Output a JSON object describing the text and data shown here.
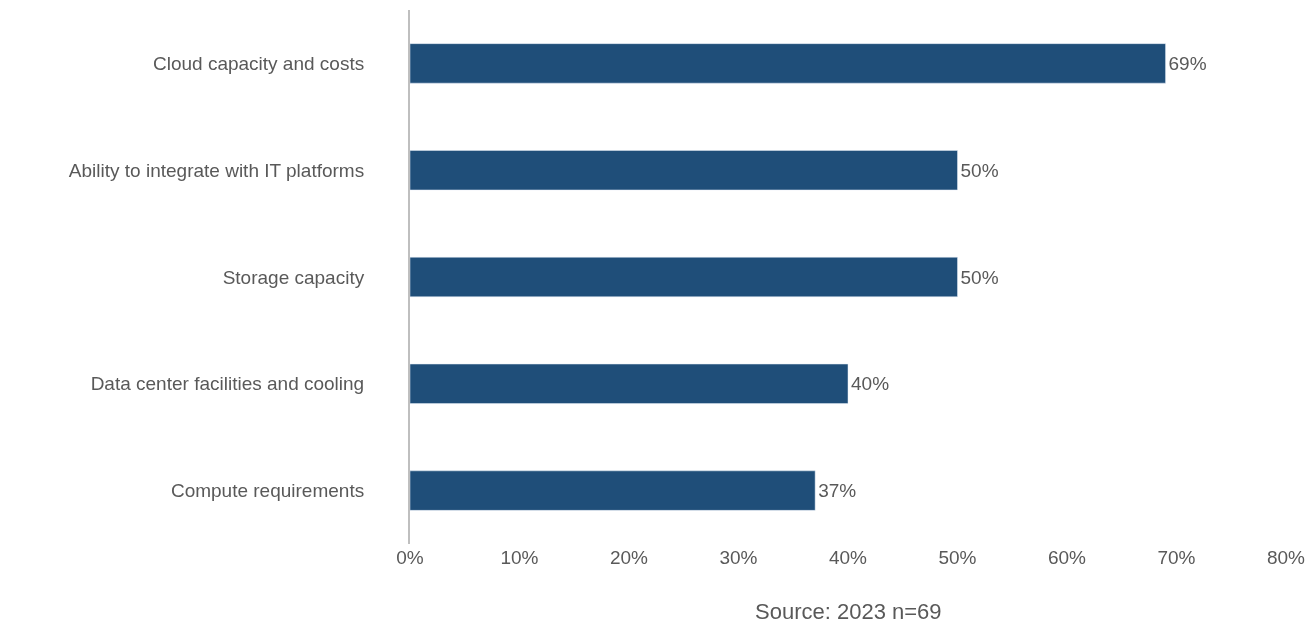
{
  "chart_data": {
    "type": "bar",
    "orientation": "horizontal",
    "categories": [
      "Cloud capacity and costs",
      "Ability to integrate with IT platforms",
      "Storage capacity",
      "Data center facilities and cooling",
      "Compute requirements"
    ],
    "values": [
      69,
      50,
      50,
      40,
      37
    ],
    "value_labels": [
      "69%",
      "50%",
      "50%",
      "40%",
      "37%"
    ],
    "color": "#1f4e79",
    "xlim": [
      0,
      80
    ],
    "xticks": [
      {
        "value": 0,
        "label": "0%"
      },
      {
        "value": 10,
        "label": "10%"
      },
      {
        "value": 20,
        "label": "20%"
      },
      {
        "value": 30,
        "label": "30%"
      },
      {
        "value": 40,
        "label": "40%"
      },
      {
        "value": 50,
        "label": "50%"
      },
      {
        "value": 60,
        "label": "60%"
      },
      {
        "value": 70,
        "label": "70%"
      },
      {
        "value": 80,
        "label": "80%"
      }
    ],
    "legend": false,
    "annotations": [
      "Source: 2023 n=69"
    ]
  }
}
